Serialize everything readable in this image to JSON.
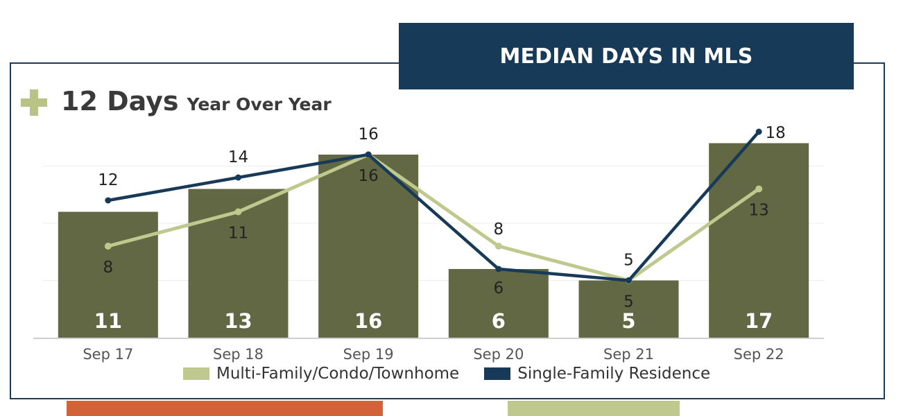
{
  "header": {
    "banner_title": "MEDIAN DAYS IN MLS",
    "change_value": "12 Days",
    "change_caption": "Year Over Year",
    "change_icon": "plus-icon"
  },
  "colors": {
    "bar": "#636844",
    "multi_family": "#bfc98d",
    "single_family": "#173a58",
    "banner": "#173a58",
    "accent_orange": "#d26237",
    "accent_green": "#bfc98d"
  },
  "chart_data": {
    "type": "bar",
    "categories": [
      "Sep 17",
      "Sep 18",
      "Sep 19",
      "Sep 20",
      "Sep 21",
      "Sep 22"
    ],
    "ylim": [
      0,
      18
    ],
    "grid": true,
    "legend_position": "bottom",
    "bars": {
      "values": [
        11,
        13,
        16,
        6,
        5,
        17
      ],
      "labels": [
        "11",
        "13",
        "16",
        "6",
        "5",
        "17"
      ]
    },
    "series": [
      {
        "name": "Multi-Family/Condo/Townhome",
        "type": "line",
        "values": [
          8,
          11,
          16,
          8,
          5,
          13
        ],
        "labels": [
          "8",
          "11",
          "16",
          "8",
          "5",
          "13"
        ]
      },
      {
        "name": "Single-Family Residence",
        "type": "line",
        "values": [
          12,
          14,
          16,
          6,
          5,
          18
        ],
        "labels": [
          "12",
          "14",
          "16",
          "6",
          "5",
          "18"
        ]
      }
    ]
  }
}
